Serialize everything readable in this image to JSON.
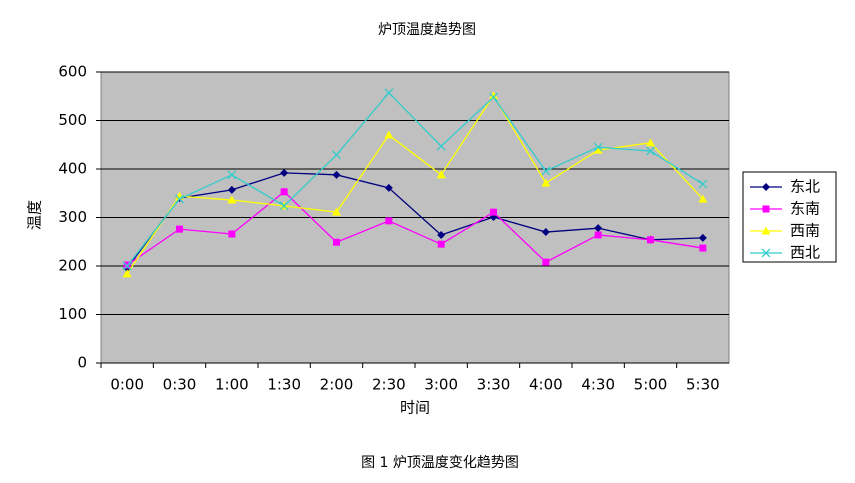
{
  "chart_data": {
    "type": "line",
    "title": "炉顶温度趋势图",
    "x_label": "时间",
    "y_label": "温度",
    "caption": "图 1 炉顶温度变化趋势图",
    "categories": [
      "0:00",
      "0:30",
      "1:00",
      "1:30",
      "2:00",
      "2:30",
      "3:00",
      "3:30",
      "4:00",
      "4:30",
      "5:00",
      "5:30"
    ],
    "series": [
      {
        "name": "东北",
        "color": "#000080",
        "marker": "diamond",
        "values": [
          196,
          340,
          357,
          392,
          388,
          361,
          264,
          301,
          270,
          278,
          254,
          258
        ]
      },
      {
        "name": "东南",
        "color": "#ff00ff",
        "marker": "square",
        "values": [
          202,
          276,
          266,
          353,
          249,
          293,
          245,
          311,
          208,
          264,
          254,
          237
        ]
      },
      {
        "name": "西南",
        "color": "#ffff00",
        "marker": "triangle",
        "values": [
          184,
          344,
          336,
          324,
          311,
          470,
          388,
          551,
          371,
          439,
          454,
          338
        ]
      },
      {
        "name": "西北",
        "color": "#33cccc",
        "marker": "cross",
        "values": [
          200,
          338,
          388,
          324,
          429,
          557,
          447,
          548,
          396,
          445,
          437,
          369
        ]
      }
    ],
    "ylim": [
      0,
      600
    ],
    "yticks": [
      0,
      100,
      200,
      300,
      400,
      500,
      600
    ],
    "grid": true,
    "legend": "right"
  }
}
